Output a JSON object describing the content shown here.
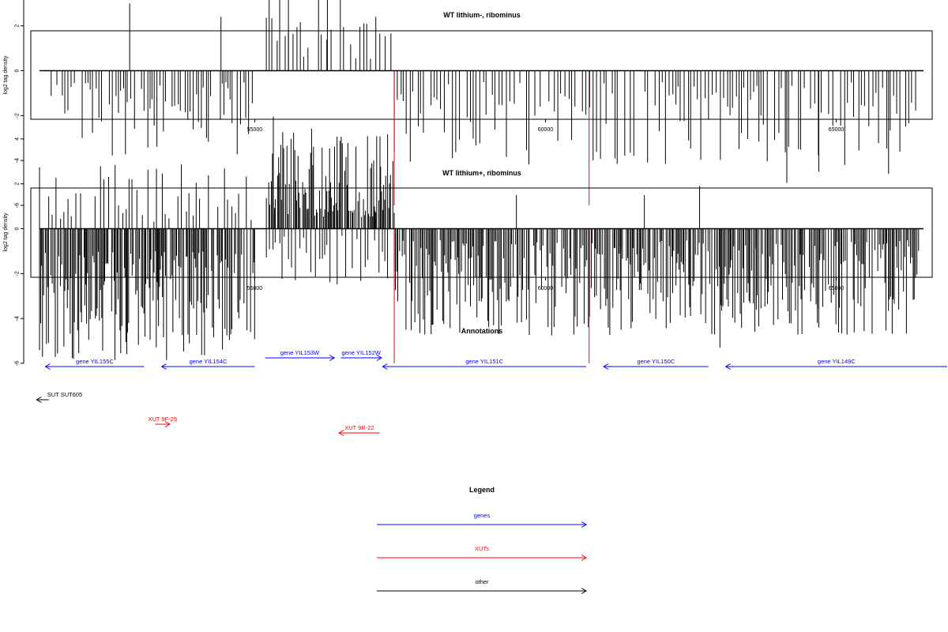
{
  "colors": {
    "gene": "#0000ff",
    "xut": "#ff0000",
    "other": "#000000",
    "highlight": "#ff0000",
    "bar": "#000000"
  },
  "chart_data": [
    {
      "type": "bar",
      "title": "WT lithium-, ribominus",
      "ylabel": "log2 tag density",
      "xlim": [
        51150,
        66650
      ],
      "ylim": [
        -6.2,
        5.5
      ],
      "yticks": [
        4,
        2,
        0,
        -2,
        -4,
        -6
      ],
      "xticks": [
        55000,
        60000,
        65000
      ],
      "baseline_range": [
        51300,
        66500
      ],
      "highlighted_x": [
        57400,
        60750
      ],
      "highlight_value": -6,
      "seed": 11,
      "regions": [
        {
          "from": 51500,
          "to": 52950,
          "step": 48,
          "sign": -1,
          "min": 0.5,
          "max": 3.8
        },
        {
          "from": 53000,
          "to": 55000,
          "step": 48,
          "sign": -1,
          "min": 0.5,
          "max": 3.8
        },
        {
          "from": 55200,
          "to": 56550,
          "step": 70,
          "sign": 1,
          "min": 0.6,
          "max": 3.4
        },
        {
          "from": 56650,
          "to": 57400,
          "step": 70,
          "sign": 1,
          "min": 0.5,
          "max": 2.6
        },
        {
          "from": 57400,
          "to": 66450,
          "step": 55,
          "sign": -1,
          "min": 0.5,
          "max": 4.2
        }
      ],
      "bars": [
        {
          "x": 52850,
          "y": 3.0
        },
        {
          "x": 54420,
          "y": 2.4
        },
        {
          "x": 55580,
          "y": 3.3
        },
        {
          "x": 56250,
          "y": 3.2
        },
        {
          "x": 64150,
          "y": -5.0
        },
        {
          "x": 64700,
          "y": -4.5
        },
        {
          "x": 65900,
          "y": -4.6
        }
      ]
    },
    {
      "type": "bar",
      "title": "WT lithium+, ribominus",
      "ylabel": "log2 tag density",
      "xlim": [
        51150,
        66650
      ],
      "ylim": [
        -6.2,
        5.5
      ],
      "yticks": [
        4,
        2,
        0,
        -2,
        -4,
        -6
      ],
      "xticks": [
        55000,
        60000,
        65000
      ],
      "baseline_range": [
        51300,
        66500
      ],
      "highlighted_x": [
        57400,
        60750
      ],
      "highlight_value": -6,
      "seed": 29,
      "regions": [
        {
          "from": 51300,
          "to": 55000,
          "step": 18,
          "sign": -1,
          "min": 1.0,
          "max": 6.0
        },
        {
          "from": 51300,
          "to": 55000,
          "step": 70,
          "sign": 1,
          "min": 0.3,
          "max": 3.0
        },
        {
          "from": 55200,
          "to": 57400,
          "step": 18,
          "sign": 1,
          "min": 0.5,
          "max": 4.6
        },
        {
          "from": 55200,
          "to": 57400,
          "step": 60,
          "sign": -1,
          "min": 0.3,
          "max": 2.5
        },
        {
          "from": 57400,
          "to": 66450,
          "step": 22,
          "sign": -1,
          "min": 0.5,
          "max": 4.8
        }
      ],
      "bars": [
        {
          "x": 55320,
          "y": 5.0
        },
        {
          "x": 59500,
          "y": 1.5
        },
        {
          "x": 61700,
          "y": 1.5
        },
        {
          "x": 62650,
          "y": 1.9
        },
        {
          "x": 61300,
          "y": -4.5
        },
        {
          "x": 63000,
          "y": -5.3
        },
        {
          "x": 63600,
          "y": -4.6
        },
        {
          "x": 64700,
          "y": -4.4
        }
      ]
    }
  ],
  "annotations": {
    "title": "Annotations",
    "items": [
      {
        "label": "gene YIL155C",
        "kind": "gene",
        "start": 51400,
        "end": 53100,
        "dir": "left",
        "row": 2
      },
      {
        "label": "gene YIL154C",
        "kind": "gene",
        "start": 53400,
        "end": 55000,
        "dir": "left",
        "row": 2
      },
      {
        "label": "gene YIL153W",
        "kind": "gene",
        "start": 55180,
        "end": 56370,
        "dir": "right",
        "row": 1
      },
      {
        "label": "gene YIL152W",
        "kind": "gene",
        "start": 56480,
        "end": 57180,
        "dir": "right",
        "row": 1
      },
      {
        "label": "gene YIL151C",
        "kind": "gene",
        "start": 57200,
        "end": 60700,
        "dir": "left",
        "row": 2
      },
      {
        "label": "gene YIL150C",
        "kind": "gene",
        "start": 61000,
        "end": 62800,
        "dir": "left",
        "row": 2
      },
      {
        "label": "gene YIL149C",
        "kind": "gene",
        "start": 63100,
        "end": 67250,
        "dir": "left",
        "row": 2
      },
      {
        "label": "SUT SUT605",
        "kind": "other",
        "start": 51250,
        "end": 51460,
        "dir": "left",
        "row": 3
      },
      {
        "label": "XUT 9F-25",
        "kind": "xut",
        "start": 53290,
        "end": 53540,
        "dir": "right",
        "row": 4
      },
      {
        "label": "XUT 9R-22",
        "kind": "xut",
        "start": 56450,
        "end": 57150,
        "dir": "left",
        "row": 5
      }
    ]
  },
  "legend": {
    "title": "Legend",
    "items": [
      {
        "label": "genes",
        "kind": "gene"
      },
      {
        "label": "XUTs",
        "kind": "xut"
      },
      {
        "label": "other",
        "kind": "other"
      }
    ]
  }
}
